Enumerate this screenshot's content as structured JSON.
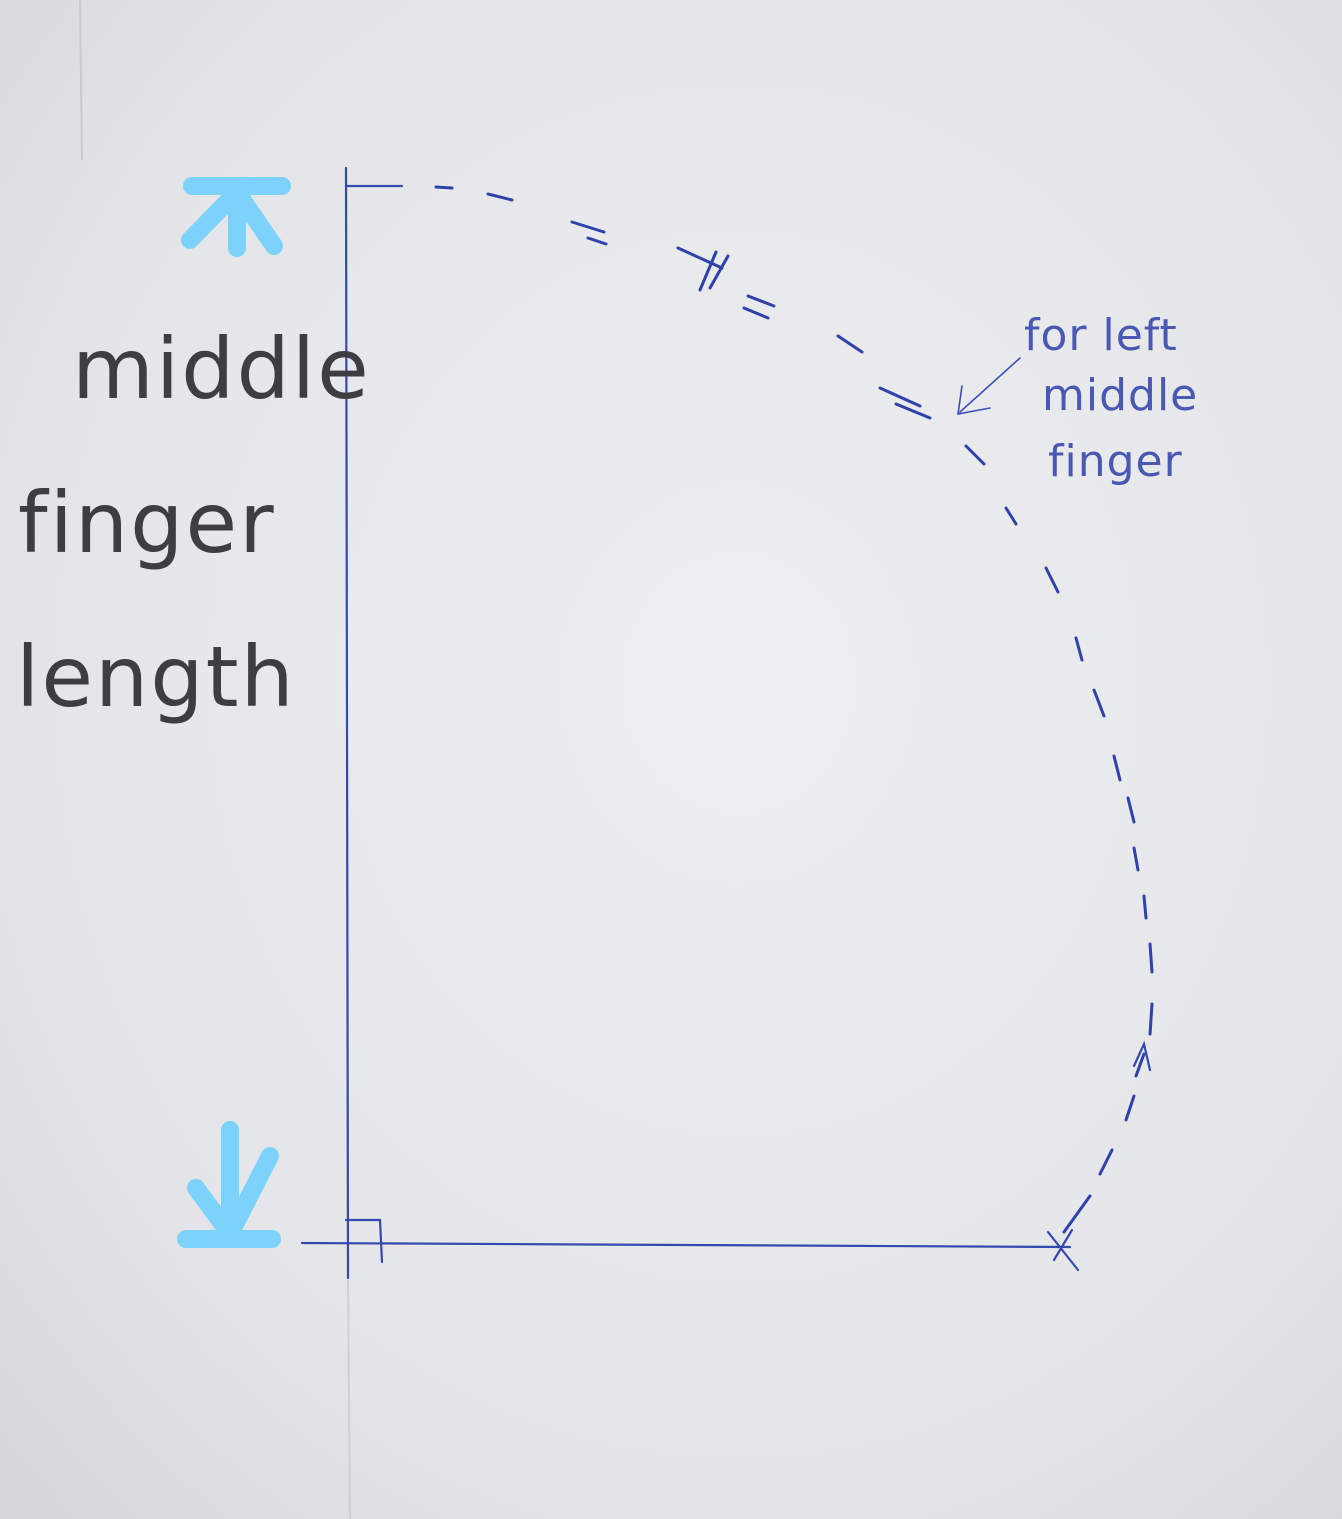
{
  "colors": {
    "paper": "#e3e4e6",
    "pen_ink": "#3547b0",
    "pencil": "#3e3e40",
    "highlight": "#7dd2fb"
  },
  "measurement_label": {
    "line1": "middle",
    "line2": "finger",
    "line3": "length"
  },
  "annotation": {
    "line1": "for left",
    "line2": "middle",
    "line3": "finger"
  },
  "icons": {
    "top_arrow": "arrow-up-icon",
    "bottom_arrow": "arrow-down-icon",
    "right_angle": "right-angle-marker-icon"
  }
}
